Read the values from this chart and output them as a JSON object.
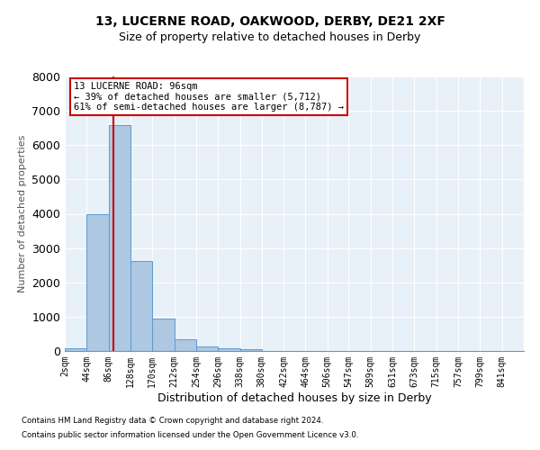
{
  "title1": "13, LUCERNE ROAD, OAKWOOD, DERBY, DE21 2XF",
  "title2": "Size of property relative to detached houses in Derby",
  "xlabel": "Distribution of detached houses by size in Derby",
  "ylabel": "Number of detached properties",
  "footnote1": "Contains HM Land Registry data © Crown copyright and database right 2024.",
  "footnote2": "Contains public sector information licensed under the Open Government Licence v3.0.",
  "bin_edges": [
    2,
    44,
    86,
    128,
    170,
    212,
    254,
    296,
    338,
    380,
    422,
    464,
    506,
    547,
    589,
    631,
    673,
    715,
    757,
    799,
    841
  ],
  "counts": [
    70,
    4000,
    6580,
    2620,
    950,
    330,
    120,
    80,
    50,
    0,
    0,
    0,
    0,
    0,
    0,
    0,
    0,
    0,
    0,
    0
  ],
  "bar_color": "#adc8e0",
  "bar_edge_color": "#5b9bd5",
  "property_size": 96,
  "property_line_color": "#cc0000",
  "annotation_text": "13 LUCERNE ROAD: 96sqm\n← 39% of detached houses are smaller (5,712)\n61% of semi-detached houses are larger (8,787) →",
  "annotation_box_color": "#ffffff",
  "annotation_box_edge_color": "#cc0000",
  "ylim": [
    0,
    8000
  ],
  "yticks": [
    0,
    1000,
    2000,
    3000,
    4000,
    5000,
    6000,
    7000,
    8000
  ],
  "bg_color": "#e8f0f8",
  "grid_color": "#ffffff",
  "title1_fontsize": 10,
  "title2_fontsize": 9,
  "tick_label_fontsize": 7,
  "ylabel_fontsize": 8,
  "xlabel_fontsize": 9
}
